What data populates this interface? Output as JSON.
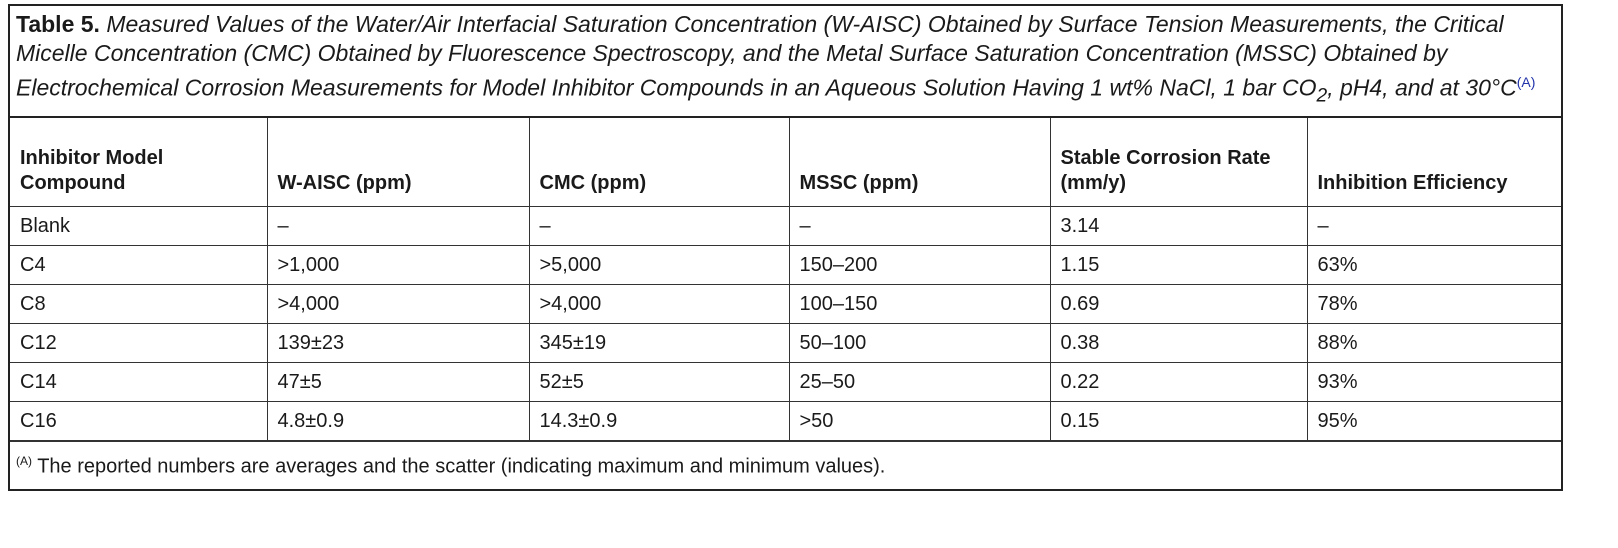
{
  "caption": {
    "label": "Table 5.",
    "text": "Measured Values of the Water/Air Interfacial Saturation Concentration (W-AISC) Obtained by Surface Tension Measurements, the Critical Micelle Concentration (CMC) Obtained by Fluorescence Spectroscopy, and the Metal Surface Saturation Concentration (MSSC) Obtained by Electrochemical Corrosion Measurements for Model Inhibitor Compounds in an Aqueous Solution Having 1 wt% NaCl, 1 bar CO",
    "subscript": "2",
    "text_end": ", pH4, and at 30°C",
    "footnote_ref": "(A)"
  },
  "table": {
    "header": [
      "Inhibitor Model Compound",
      "W-AISC (ppm)",
      "CMC (ppm)",
      "MSSC (ppm)",
      "Stable Corrosion Rate (mm/y)",
      "Inhibition Efficiency"
    ],
    "rows": [
      [
        "Blank",
        "–",
        "–",
        "–",
        "3.14",
        "–"
      ],
      [
        "C4",
        ">1,000",
        ">5,000",
        "150–200",
        "1.15",
        "63%"
      ],
      [
        "C8",
        ">4,000",
        ">4,000",
        "100–150",
        "0.69",
        "78%"
      ],
      [
        "C12",
        "139±23",
        "345±19",
        "50–100",
        "0.38",
        "88%"
      ],
      [
        "C14",
        "47±5",
        "52±5",
        "25–50",
        "0.22",
        "93%"
      ],
      [
        "C16",
        "4.8±0.9",
        "14.3±0.9",
        ">50",
        "0.15",
        "95%"
      ]
    ]
  },
  "footnote": {
    "marker": "(A)",
    "text": " The reported numbers are averages and the scatter (indicating maximum and minimum values)."
  }
}
